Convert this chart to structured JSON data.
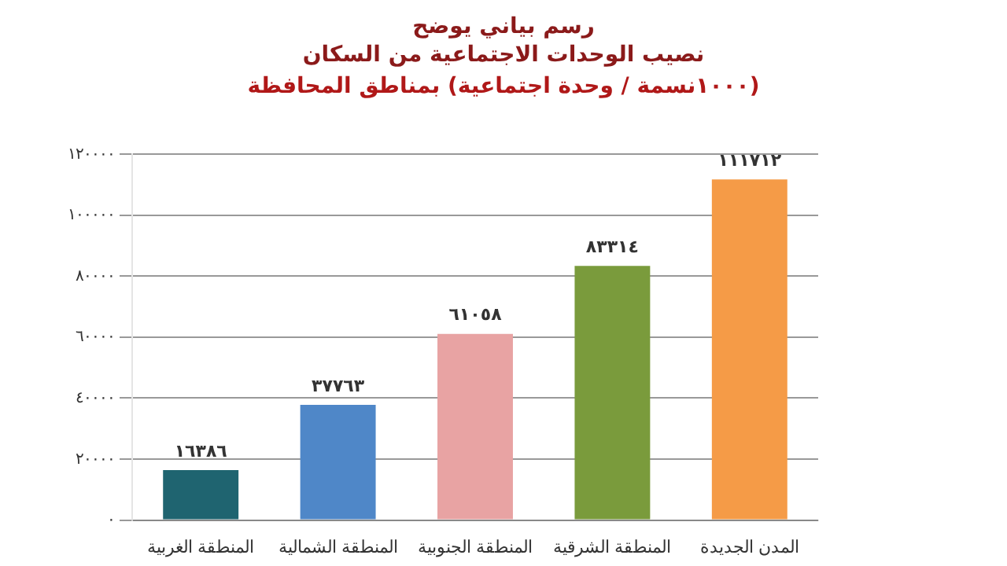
{
  "chart_data": {
    "type": "bar",
    "title": "رسم بياني يوضح\nنصيب الوحدات الاجتماعية من السكان",
    "subtitle": "(١٠٠٠نسمة / وحدة اجتماعية) بمناطق المحافظة",
    "categories": [
      "المنطقة الغربية",
      "المنطقة الشمالية",
      "المنطقة الجنوبية",
      "المنطقة الشرقية",
      "المدن الجديدة"
    ],
    "values": [
      16386,
      37763,
      61058,
      83314,
      111712
    ],
    "value_labels": [
      "١٦٣٨٦",
      "٣٧٧٦٣",
      "٦١٠٥٨",
      "٨٣٣١٤",
      "١١١٧١٢"
    ],
    "colors": [
      "#1f6470",
      "#4f87c8",
      "#e8a3a3",
      "#7a9b3c",
      "#f59b47"
    ],
    "ylim": [
      0,
      120000
    ],
    "yticks": [
      {
        "value": 0,
        "label": "٠"
      },
      {
        "value": 20000,
        "label": "٢٠٠٠٠"
      },
      {
        "value": 40000,
        "label": "٤٠٠٠٠"
      },
      {
        "value": 60000,
        "label": "٦٠٠٠٠"
      },
      {
        "value": 80000,
        "label": "٨٠٠٠٠"
      },
      {
        "value": 100000,
        "label": "١٠٠٠٠٠"
      },
      {
        "value": 120000,
        "label": "١٢٠٠٠٠"
      }
    ],
    "grid": "y",
    "legend": false
  }
}
